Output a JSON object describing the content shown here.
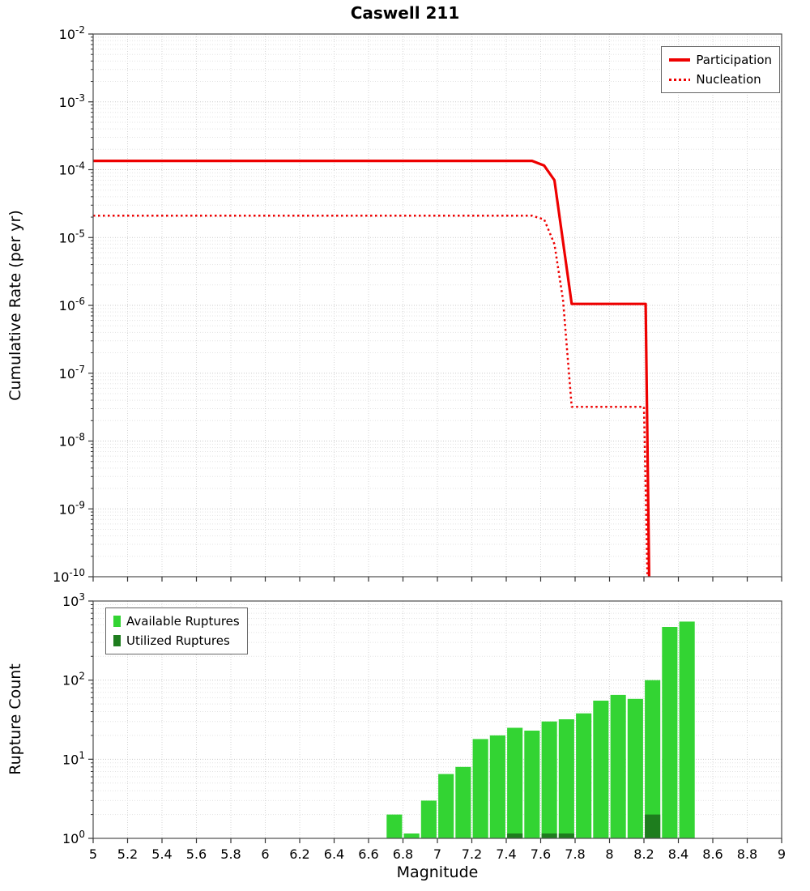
{
  "title": "Caswell 211",
  "chart_data": [
    {
      "type": "line",
      "title": "Caswell 211",
      "xlabel": "",
      "ylabel": "Cumulative Rate (per yr)",
      "x_scale": "linear",
      "y_scale": "log",
      "xlim": [
        5,
        9
      ],
      "y_exponent_range": [
        -10,
        -2
      ],
      "y_tick_exponents": [
        -2,
        -3,
        -4,
        -5,
        -6,
        -7,
        -8,
        -9,
        -10
      ],
      "x_tick_values": [
        5,
        5.2,
        5.4,
        5.6,
        5.8,
        6,
        6.2,
        6.4,
        6.6,
        6.8,
        7,
        7.2,
        7.4,
        7.6,
        7.8,
        8,
        8.2,
        8.4,
        8.6,
        8.8,
        9
      ],
      "show_x_tick_labels": false,
      "grid": true,
      "legend_position": "top-right",
      "series": [
        {
          "name": "Participation",
          "color": "#ee0000",
          "style": "solid",
          "width": 3.2,
          "points": [
            [
              5,
              0.000135
            ],
            [
              7.55,
              0.000135
            ],
            [
              7.62,
              0.000115
            ],
            [
              7.68,
              7e-05
            ],
            [
              7.78,
              1.05e-06
            ],
            [
              8.21,
              1.05e-06
            ],
            [
              8.23,
              1e-10
            ]
          ]
        },
        {
          "name": "Nucleation",
          "color": "#ee0000",
          "style": "dotted",
          "width": 2.5,
          "points": [
            [
              5,
              2.1e-05
            ],
            [
              7.55,
              2.1e-05
            ],
            [
              7.62,
              1.85e-05
            ],
            [
              7.68,
              8e-06
            ],
            [
              7.73,
              1.2e-06
            ],
            [
              7.78,
              3.2e-08
            ],
            [
              8.2,
              3.2e-08
            ],
            [
              8.22,
              1e-10
            ]
          ]
        }
      ]
    },
    {
      "type": "bar",
      "xlabel": "Magnitude",
      "ylabel": "Rupture Count",
      "x_scale": "linear",
      "y_scale": "log",
      "xlim": [
        5,
        9
      ],
      "y_exponent_range": [
        0,
        3
      ],
      "y_tick_exponents": [
        3,
        2,
        1,
        0
      ],
      "x_tick_values": [
        5,
        5.2,
        5.4,
        5.6,
        5.8,
        6,
        6.2,
        6.4,
        6.6,
        6.8,
        7,
        7.2,
        7.4,
        7.6,
        7.8,
        8,
        8.2,
        8.4,
        8.6,
        8.8,
        9
      ],
      "x_tick_labels": [
        "5",
        "5.2",
        "5.4",
        "5.6",
        "5.8",
        "6",
        "6.2",
        "6.4",
        "6.6",
        "6.8",
        "7",
        "7.2",
        "7.4",
        "7.6",
        "7.8",
        "8",
        "8.2",
        "8.4",
        "8.6",
        "8.8",
        "9"
      ],
      "show_x_tick_labels": true,
      "grid": true,
      "legend_position": "top-left",
      "series": [
        {
          "name": "Available Ruptures",
          "color": "#33d433",
          "bar_width": 0.09,
          "centers": [
            6.75,
            6.85,
            6.95,
            7.05,
            7.15,
            7.25,
            7.35,
            7.45,
            7.55,
            7.65,
            7.75,
            7.85,
            7.95,
            8.05,
            8.15,
            8.25,
            8.35,
            8.45
          ],
          "counts": [
            2,
            1,
            3,
            6.5,
            8,
            18,
            20,
            25,
            23,
            30,
            32,
            38,
            55,
            65,
            58,
            100,
            470,
            550
          ]
        },
        {
          "name": "Utilized Ruptures",
          "color": "#1e7d1e",
          "bar_width": 0.09,
          "centers": [
            7.45,
            7.65,
            7.75,
            8.25
          ],
          "counts": [
            1,
            1,
            1,
            2
          ]
        }
      ]
    }
  ]
}
